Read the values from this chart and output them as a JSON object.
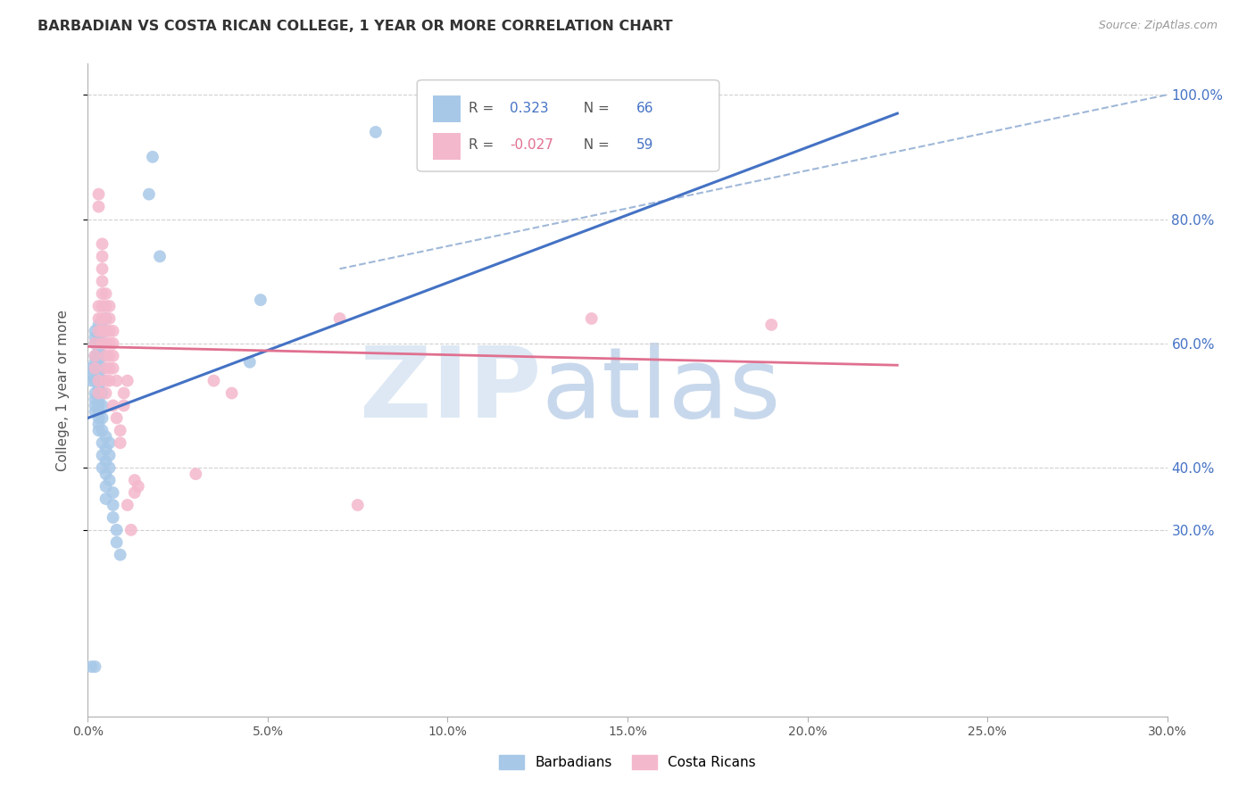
{
  "title": "BARBADIAN VS COSTA RICAN COLLEGE, 1 YEAR OR MORE CORRELATION CHART",
  "source": "Source: ZipAtlas.com",
  "ylabel": "College, 1 year or more",
  "legend_blue_label": "Barbadians",
  "legend_pink_label": "Costa Ricans",
  "blue_color": "#a8c8e8",
  "pink_color": "#f4b8cc",
  "blue_line_color": "#4472c4",
  "pink_line_color": "#e07090",
  "dashed_line_color": "#a0b8d8",
  "blue_scatter": [
    [
      0.001,
      0.54
    ],
    [
      0.001,
      0.56
    ],
    [
      0.001,
      0.55
    ],
    [
      0.002,
      0.57
    ],
    [
      0.002,
      0.58
    ],
    [
      0.002,
      0.6
    ],
    [
      0.002,
      0.61
    ],
    [
      0.002,
      0.62
    ],
    [
      0.002,
      0.56
    ],
    [
      0.002,
      0.54
    ],
    [
      0.002,
      0.52
    ],
    [
      0.002,
      0.5
    ],
    [
      0.002,
      0.49
    ],
    [
      0.002,
      0.51
    ],
    [
      0.003,
      0.59
    ],
    [
      0.003,
      0.61
    ],
    [
      0.003,
      0.63
    ],
    [
      0.003,
      0.57
    ],
    [
      0.003,
      0.55
    ],
    [
      0.003,
      0.53
    ],
    [
      0.003,
      0.52
    ],
    [
      0.003,
      0.51
    ],
    [
      0.003,
      0.5
    ],
    [
      0.003,
      0.49
    ],
    [
      0.003,
      0.48
    ],
    [
      0.003,
      0.47
    ],
    [
      0.003,
      0.46
    ],
    [
      0.003,
      0.58
    ],
    [
      0.004,
      0.62
    ],
    [
      0.004,
      0.6
    ],
    [
      0.004,
      0.58
    ],
    [
      0.004,
      0.56
    ],
    [
      0.004,
      0.54
    ],
    [
      0.004,
      0.52
    ],
    [
      0.004,
      0.5
    ],
    [
      0.004,
      0.48
    ],
    [
      0.004,
      0.46
    ],
    [
      0.004,
      0.44
    ],
    [
      0.004,
      0.42
    ],
    [
      0.004,
      0.4
    ],
    [
      0.005,
      0.64
    ],
    [
      0.005,
      0.62
    ],
    [
      0.005,
      0.45
    ],
    [
      0.005,
      0.43
    ],
    [
      0.005,
      0.41
    ],
    [
      0.005,
      0.39
    ],
    [
      0.005,
      0.37
    ],
    [
      0.005,
      0.35
    ],
    [
      0.006,
      0.44
    ],
    [
      0.006,
      0.42
    ],
    [
      0.006,
      0.4
    ],
    [
      0.006,
      0.38
    ],
    [
      0.007,
      0.36
    ],
    [
      0.007,
      0.34
    ],
    [
      0.007,
      0.32
    ],
    [
      0.008,
      0.3
    ],
    [
      0.008,
      0.28
    ],
    [
      0.009,
      0.26
    ],
    [
      0.001,
      0.08
    ],
    [
      0.002,
      0.08
    ],
    [
      0.017,
      0.84
    ],
    [
      0.018,
      0.9
    ],
    [
      0.02,
      0.74
    ],
    [
      0.08,
      0.94
    ],
    [
      0.045,
      0.57
    ],
    [
      0.048,
      0.67
    ]
  ],
  "pink_scatter": [
    [
      0.002,
      0.56
    ],
    [
      0.002,
      0.58
    ],
    [
      0.002,
      0.6
    ],
    [
      0.003,
      0.62
    ],
    [
      0.003,
      0.64
    ],
    [
      0.003,
      0.66
    ],
    [
      0.003,
      0.54
    ],
    [
      0.003,
      0.52
    ],
    [
      0.003,
      0.84
    ],
    [
      0.003,
      0.82
    ],
    [
      0.004,
      0.7
    ],
    [
      0.004,
      0.72
    ],
    [
      0.004,
      0.74
    ],
    [
      0.004,
      0.76
    ],
    [
      0.004,
      0.68
    ],
    [
      0.004,
      0.66
    ],
    [
      0.004,
      0.64
    ],
    [
      0.004,
      0.62
    ],
    [
      0.004,
      0.6
    ],
    [
      0.005,
      0.68
    ],
    [
      0.005,
      0.66
    ],
    [
      0.005,
      0.64
    ],
    [
      0.005,
      0.62
    ],
    [
      0.005,
      0.6
    ],
    [
      0.005,
      0.58
    ],
    [
      0.005,
      0.56
    ],
    [
      0.005,
      0.54
    ],
    [
      0.005,
      0.52
    ],
    [
      0.006,
      0.66
    ],
    [
      0.006,
      0.64
    ],
    [
      0.006,
      0.62
    ],
    [
      0.006,
      0.6
    ],
    [
      0.006,
      0.58
    ],
    [
      0.006,
      0.56
    ],
    [
      0.006,
      0.54
    ],
    [
      0.007,
      0.62
    ],
    [
      0.007,
      0.6
    ],
    [
      0.007,
      0.58
    ],
    [
      0.007,
      0.56
    ],
    [
      0.007,
      0.5
    ],
    [
      0.008,
      0.54
    ],
    [
      0.008,
      0.48
    ],
    [
      0.009,
      0.46
    ],
    [
      0.009,
      0.44
    ],
    [
      0.01,
      0.5
    ],
    [
      0.01,
      0.52
    ],
    [
      0.011,
      0.54
    ],
    [
      0.011,
      0.34
    ],
    [
      0.012,
      0.3
    ],
    [
      0.013,
      0.36
    ],
    [
      0.013,
      0.38
    ],
    [
      0.014,
      0.37
    ],
    [
      0.03,
      0.39
    ],
    [
      0.035,
      0.54
    ],
    [
      0.04,
      0.52
    ],
    [
      0.07,
      0.64
    ],
    [
      0.14,
      0.64
    ],
    [
      0.19,
      0.63
    ],
    [
      0.075,
      0.34
    ]
  ],
  "xlim": [
    0.0,
    0.3
  ],
  "ylim": [
    0.0,
    1.05
  ],
  "x_ticks": [
    0.0,
    0.05,
    0.1,
    0.15,
    0.2,
    0.25,
    0.3
  ],
  "x_tick_labels": [
    "0.0%",
    "5.0%",
    "10.0%",
    "15.0%",
    "20.0%",
    "25.0%",
    "30.0%"
  ],
  "y_ticks": [
    0.3,
    0.4,
    0.6,
    0.8,
    1.0
  ],
  "y_tick_labels": [
    "30.0%",
    "40.0%",
    "60.0%",
    "80.0%",
    "100.0%"
  ],
  "blue_reg": [
    0.0,
    0.48,
    0.225,
    0.97
  ],
  "pink_reg": [
    0.0,
    0.595,
    0.225,
    0.565
  ],
  "diag": [
    0.07,
    0.72,
    0.3,
    1.0
  ],
  "legend_blue_r": "R = ",
  "legend_blue_r_val": "0.323",
  "legend_blue_n_pre": "  N = ",
  "legend_blue_n_val": "66",
  "legend_pink_r": "R = ",
  "legend_pink_r_val": "-0.027",
  "legend_pink_n_pre": "  N = ",
  "legend_pink_n_val": "59",
  "val_color": "#4472c4",
  "pink_val_color": "#e07090",
  "grid_color": "#d0d0d0",
  "spine_color": "#b0b0b0",
  "text_color": "#555555",
  "right_tick_color": "#4472c4"
}
